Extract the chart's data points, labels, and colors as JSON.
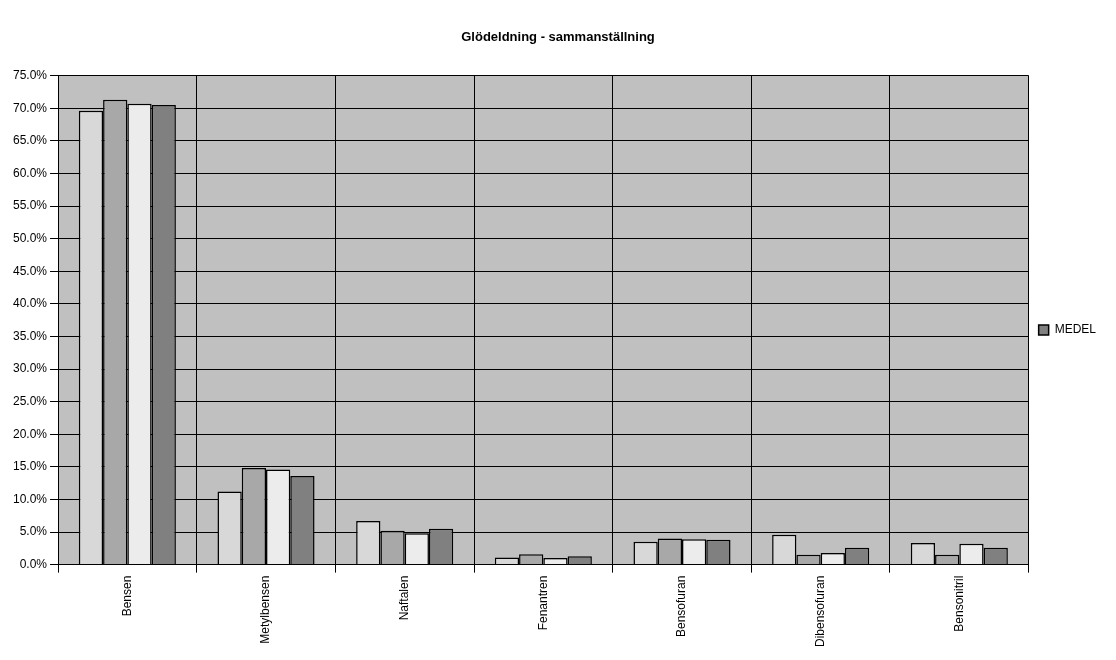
{
  "chart_data": {
    "type": "bar",
    "title": "Glödeldning - sammanställning",
    "categories": [
      "Bensen",
      "Metylbensen",
      "Naftalen",
      "Fenantren",
      "Bensofuran",
      "Dibensofuran",
      "Bensonitril"
    ],
    "series": [
      {
        "color": "#d8d8d8",
        "values": [
          69.6,
          11.2,
          6.7,
          1.1,
          3.5,
          4.6,
          3.3
        ]
      },
      {
        "color": "#a8a8a8",
        "values": [
          71.3,
          14.8,
          5.2,
          1.6,
          4.0,
          1.5,
          1.5
        ]
      },
      {
        "color": "#ececec",
        "values": [
          70.7,
          14.6,
          4.8,
          1.0,
          3.9,
          1.8,
          3.2
        ]
      },
      {
        "name": "MEDEL",
        "color": "#808080",
        "values": [
          70.5,
          13.6,
          5.5,
          1.3,
          3.8,
          2.6,
          2.6
        ]
      }
    ],
    "ylim": [
      0,
      75
    ],
    "yticks": [
      {
        "value": 0,
        "label": "0.0%"
      },
      {
        "value": 5,
        "label": "5.0%"
      },
      {
        "value": 10,
        "label": "10.0%"
      },
      {
        "value": 15,
        "label": "15.0%"
      },
      {
        "value": 20,
        "label": "20.0%"
      },
      {
        "value": 25,
        "label": "25.0%"
      },
      {
        "value": 30,
        "label": "30.0%"
      },
      {
        "value": 35,
        "label": "35.0%"
      },
      {
        "value": 40,
        "label": "40.0%"
      },
      {
        "value": 45,
        "label": "45.0%"
      },
      {
        "value": 50,
        "label": "50.0%"
      },
      {
        "value": 55,
        "label": "55.0%"
      },
      {
        "value": 60,
        "label": "60.0%"
      },
      {
        "value": 65,
        "label": "65.0%"
      },
      {
        "value": 70,
        "label": "70.0%"
      },
      {
        "value": 75,
        "label": "75.0%"
      }
    ],
    "grid": true,
    "legend": "right"
  }
}
